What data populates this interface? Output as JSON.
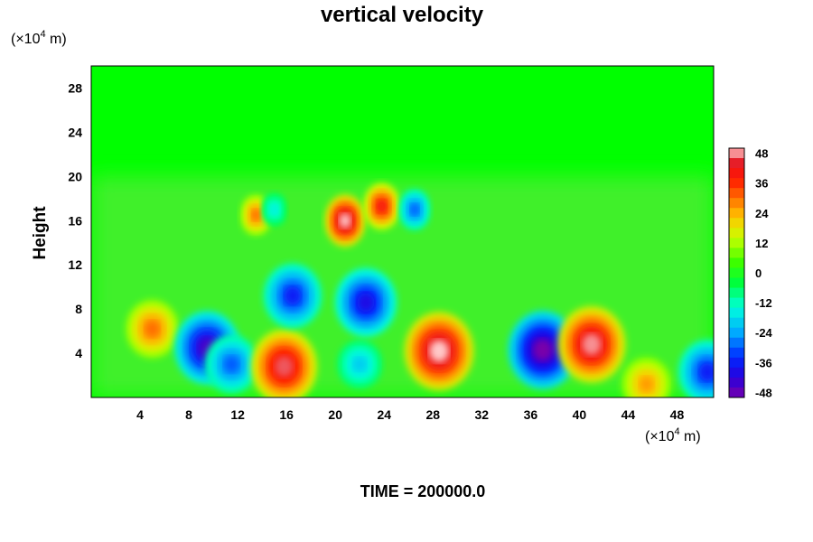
{
  "chart_data": {
    "type": "heatmap",
    "title": "vertical velocity",
    "ylabel": "Height",
    "y_unit": {
      "prefix": "(×10",
      "exp": "4",
      "suffix": " m)"
    },
    "x_unit": {
      "prefix": "(×10",
      "exp": "4",
      "suffix": " m)"
    },
    "xlim": [
      0,
      51
    ],
    "ylim": [
      0,
      30
    ],
    "xticks": [
      "4",
      "8",
      "12",
      "16",
      "20",
      "24",
      "28",
      "32",
      "36",
      "40",
      "44",
      "48"
    ],
    "yticks": [
      "4",
      "8",
      "12",
      "16",
      "20",
      "24",
      "28"
    ],
    "colorbar": {
      "min": -50,
      "max": 50,
      "ticks": [
        "48",
        "36",
        "24",
        "12",
        "0",
        "-12",
        "-24",
        "-36",
        "-48"
      ]
    },
    "features": [
      {
        "x": 5.0,
        "y": 6.2,
        "value": 30
      },
      {
        "x": 9.5,
        "y": 4.5,
        "value": -45
      },
      {
        "x": 11.5,
        "y": 3.0,
        "value": -30
      },
      {
        "x": 15.8,
        "y": 2.8,
        "value": 46
      },
      {
        "x": 22.0,
        "y": 3.0,
        "value": -20
      },
      {
        "x": 28.5,
        "y": 4.2,
        "value": 50
      },
      {
        "x": 37.0,
        "y": 4.3,
        "value": -50
      },
      {
        "x": 41.0,
        "y": 4.8,
        "value": 48
      },
      {
        "x": 50.5,
        "y": 2.3,
        "value": -36
      },
      {
        "x": 20.8,
        "y": 16.0,
        "value": 50
      },
      {
        "x": 23.8,
        "y": 17.3,
        "value": 40
      },
      {
        "x": 26.5,
        "y": 17.0,
        "value": -30
      },
      {
        "x": 13.5,
        "y": 16.5,
        "value": 30
      },
      {
        "x": 16.5,
        "y": 9.2,
        "value": -36
      },
      {
        "x": 22.5,
        "y": 8.6,
        "value": -40
      },
      {
        "x": 15.0,
        "y": 17.0,
        "value": -16
      },
      {
        "x": 45.5,
        "y": 1.2,
        "value": 26
      }
    ]
  },
  "time_label": "TIME = 200000.0"
}
